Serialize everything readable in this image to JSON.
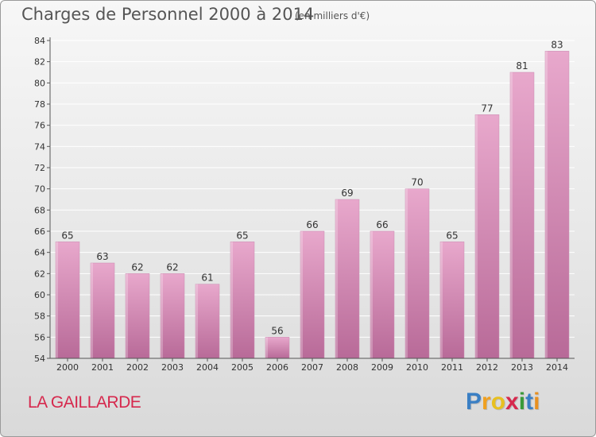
{
  "header": {
    "title": "Charges de Personnel 2000 à 2014",
    "subtitle": "(en milliers d'€)"
  },
  "footer": {
    "location": "LA GAILLARDE",
    "logo_text": "Proxiti",
    "logo_letters": [
      {
        "ch": "P",
        "color": "#3a7fc4"
      },
      {
        "ch": "r",
        "color": "#f0a020"
      },
      {
        "ch": "o",
        "color": "#e8c020"
      },
      {
        "ch": "x",
        "color": "#d6284d"
      },
      {
        "ch": "i",
        "color": "#3a9a3a"
      },
      {
        "ch": "t",
        "color": "#3a7fc4"
      },
      {
        "ch": "i",
        "color": "#e89020"
      }
    ]
  },
  "colors": {
    "bar_top": "#e8a8cc",
    "bar_bottom": "#b86a98",
    "axis": "#555555",
    "grid": "#ffffff"
  },
  "chart_data": {
    "type": "bar",
    "title": "Charges de Personnel 2000 à 2014",
    "subtitle": "(en milliers d'€)",
    "categories": [
      "2000",
      "2001",
      "2002",
      "2003",
      "2004",
      "2005",
      "2006",
      "2007",
      "2008",
      "2009",
      "2010",
      "2011",
      "2012",
      "2013",
      "2014"
    ],
    "values": [
      65,
      63,
      62,
      62,
      61,
      65,
      56,
      66,
      69,
      66,
      70,
      65,
      77,
      81,
      83
    ],
    "ylim": [
      54,
      84
    ],
    "yticks": [
      54,
      56,
      58,
      60,
      62,
      64,
      66,
      68,
      70,
      72,
      74,
      76,
      78,
      80,
      82,
      84
    ],
    "grid": true,
    "data_labels": true
  }
}
